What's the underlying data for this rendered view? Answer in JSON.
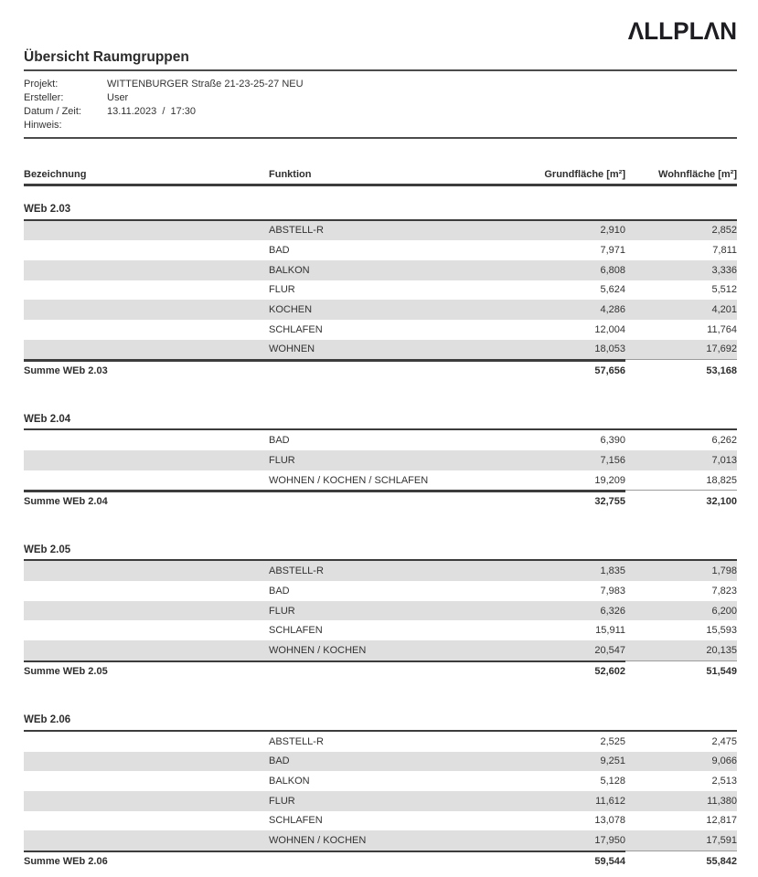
{
  "logo": "ΛLLPLΛN",
  "title": "Übersicht Raumgruppen",
  "info": {
    "rows": [
      {
        "label": "Projekt:",
        "value": "WITTENBURGER Straße 21-23-25-27 NEU"
      },
      {
        "label": "Ersteller:",
        "value": "User"
      },
      {
        "label": "Datum / Zeit:",
        "value": "13.11.2023  /  17:30"
      },
      {
        "label": "Hinweis:",
        "value": ""
      }
    ]
  },
  "table": {
    "columns": [
      "Bezeichnung",
      "Funktion",
      "Grundfläche [m²]",
      "Wohnfläche [m²]"
    ],
    "groups": [
      {
        "name": "WEb 2.03",
        "rows": [
          {
            "funktion": "ABSTELL-R",
            "grundflaeche": "2,910",
            "wohnflaeche": "2,852"
          },
          {
            "funktion": "BAD",
            "grundflaeche": "7,971",
            "wohnflaeche": "7,811"
          },
          {
            "funktion": "BALKON",
            "grundflaeche": "6,808",
            "wohnflaeche": "3,336"
          },
          {
            "funktion": "FLUR",
            "grundflaeche": "5,624",
            "wohnflaeche": "5,512"
          },
          {
            "funktion": "KOCHEN",
            "grundflaeche": "4,286",
            "wohnflaeche": "4,201"
          },
          {
            "funktion": "SCHLAFEN",
            "grundflaeche": "12,004",
            "wohnflaeche": "11,764"
          },
          {
            "funktion": "WOHNEN",
            "grundflaeche": "18,053",
            "wohnflaeche": "17,692"
          }
        ],
        "summe": {
          "label": "Summe WEb 2.03",
          "grundflaeche": "57,656",
          "wohnflaeche": "53,168"
        }
      },
      {
        "name": "WEb 2.04",
        "rows": [
          {
            "funktion": "BAD",
            "grundflaeche": "6,390",
            "wohnflaeche": "6,262"
          },
          {
            "funktion": "FLUR",
            "grundflaeche": "7,156",
            "wohnflaeche": "7,013"
          },
          {
            "funktion": "WOHNEN / KOCHEN / SCHLAFEN",
            "grundflaeche": "19,209",
            "wohnflaeche": "18,825"
          }
        ],
        "summe": {
          "label": "Summe WEb 2.04",
          "grundflaeche": "32,755",
          "wohnflaeche": "32,100"
        }
      },
      {
        "name": "WEb 2.05",
        "rows": [
          {
            "funktion": "ABSTELL-R",
            "grundflaeche": "1,835",
            "wohnflaeche": "1,798"
          },
          {
            "funktion": "BAD",
            "grundflaeche": "7,983",
            "wohnflaeche": "7,823"
          },
          {
            "funktion": "FLUR",
            "grundflaeche": "6,326",
            "wohnflaeche": "6,200"
          },
          {
            "funktion": "SCHLAFEN",
            "grundflaeche": "15,911",
            "wohnflaeche": "15,593"
          },
          {
            "funktion": "WOHNEN / KOCHEN",
            "grundflaeche": "20,547",
            "wohnflaeche": "20,135"
          }
        ],
        "summe": {
          "label": "Summe WEb 2.05",
          "grundflaeche": "52,602",
          "wohnflaeche": "51,549"
        }
      },
      {
        "name": "WEb 2.06",
        "rows": [
          {
            "funktion": "ABSTELL-R",
            "grundflaeche": "2,525",
            "wohnflaeche": "2,475"
          },
          {
            "funktion": "BAD",
            "grundflaeche": "9,251",
            "wohnflaeche": "9,066"
          },
          {
            "funktion": "BALKON",
            "grundflaeche": "5,128",
            "wohnflaeche": "2,513"
          },
          {
            "funktion": "FLUR",
            "grundflaeche": "11,612",
            "wohnflaeche": "11,380"
          },
          {
            "funktion": "SCHLAFEN",
            "grundflaeche": "13,078",
            "wohnflaeche": "12,817"
          },
          {
            "funktion": "WOHNEN / KOCHEN",
            "grundflaeche": "17,950",
            "wohnflaeche": "17,591"
          }
        ],
        "summe": {
          "label": "Summe WEb 2.06",
          "grundflaeche": "59,544",
          "wohnflaeche": "55,842"
        }
      }
    ]
  },
  "colors": {
    "stripe": "#dfdfdf",
    "rule_dark": "#3c3c3c",
    "rule_medium": "#4b4b4b",
    "rule_light": "#9c9c9c",
    "text": "#333333"
  }
}
